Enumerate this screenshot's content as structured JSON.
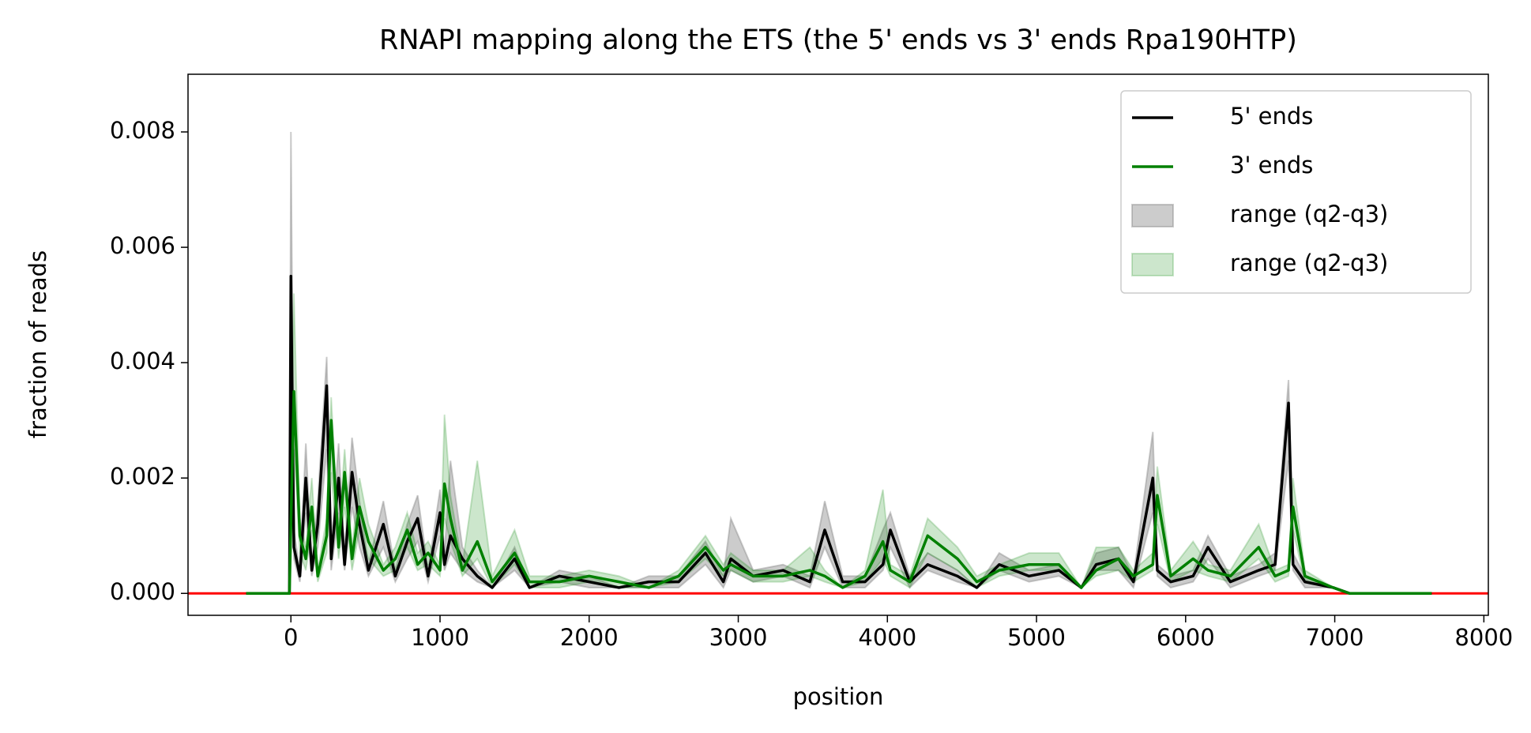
{
  "chart_data": {
    "type": "line",
    "title": "RNAPI mapping along the ETS (the 5' ends vs 3' ends Rpa190HTP)",
    "x_label": "position",
    "y_label": "fraction of reads",
    "x": [
      -300,
      -10,
      0,
      20,
      60,
      100,
      140,
      180,
      240,
      270,
      320,
      360,
      410,
      460,
      520,
      620,
      700,
      780,
      850,
      920,
      1000,
      1030,
      1070,
      1150,
      1250,
      1350,
      1500,
      1600,
      1800,
      2000,
      2200,
      2400,
      2600,
      2780,
      2900,
      2950,
      3100,
      3300,
      3480,
      3580,
      3700,
      3850,
      3970,
      4020,
      4150,
      4270,
      4470,
      4600,
      4750,
      4950,
      5150,
      5300,
      5400,
      5550,
      5650,
      5780,
      5810,
      5900,
      6050,
      6150,
      6300,
      6490,
      6600,
      6690,
      6720,
      6800,
      6990,
      7100,
      7650
    ],
    "series": [
      {
        "name": "5' ends",
        "color": "#000000",
        "values": [
          0,
          0,
          0.0055,
          0.0008,
          0.0003,
          0.002,
          0.0004,
          0.0012,
          0.0036,
          0.0006,
          0.002,
          0.0005,
          0.0021,
          0.0012,
          0.0004,
          0.0012,
          0.0003,
          0.0009,
          0.0013,
          0.0003,
          0.0014,
          0.0005,
          0.001,
          0.0006,
          0.0003,
          0.0001,
          0.0006,
          0.0001,
          0.0003,
          0.0002,
          0.0001,
          0.0002,
          0.0002,
          0.0007,
          0.0002,
          0.0006,
          0.0003,
          0.0004,
          0.0002,
          0.0011,
          0.0002,
          0.0002,
          0.0005,
          0.0011,
          0.0002,
          0.0005,
          0.0003,
          0.0001,
          0.0005,
          0.0003,
          0.0004,
          0.0001,
          0.0005,
          0.0006,
          0.0002,
          0.002,
          0.0004,
          0.0002,
          0.0003,
          0.0008,
          0.0002,
          0.0004,
          0.0005,
          0.0033,
          0.0005,
          0.0002,
          0.0001,
          0,
          0
        ]
      },
      {
        "name": "3' ends",
        "color": "#008000",
        "values": [
          0,
          0,
          0.0012,
          0.0035,
          0.001,
          0.0006,
          0.0015,
          0.0003,
          0.001,
          0.003,
          0.0008,
          0.0021,
          0.0006,
          0.0015,
          0.0009,
          0.0004,
          0.0006,
          0.0011,
          0.0005,
          0.0007,
          0.0004,
          0.0019,
          0.0013,
          0.0004,
          0.0009,
          0.0002,
          0.0007,
          0.0002,
          0.0002,
          0.0003,
          0.0002,
          0.0001,
          0.0003,
          0.0008,
          0.0004,
          0.0005,
          0.0003,
          0.0003,
          0.0004,
          0.0003,
          0.0001,
          0.0003,
          0.0009,
          0.0004,
          0.0002,
          0.001,
          0.0006,
          0.0002,
          0.0004,
          0.0005,
          0.0005,
          0.0001,
          0.0004,
          0.0006,
          0.0003,
          0.0005,
          0.0017,
          0.0003,
          0.0006,
          0.0004,
          0.0003,
          0.0008,
          0.0003,
          0.0004,
          0.0015,
          0.0003,
          0.0001,
          0,
          0
        ]
      }
    ],
    "bands": [
      {
        "name": "range (q2-q3)",
        "color": "#808080",
        "lower": [
          0,
          0,
          0.0038,
          0.0006,
          0.0002,
          0.0014,
          0.0003,
          0.0008,
          0.0025,
          0.0004,
          0.0014,
          0.0004,
          0.0015,
          0.0008,
          0.0003,
          0.0008,
          0.0002,
          0.0006,
          0.0009,
          0.0002,
          0.001,
          0.0004,
          0.0007,
          0.0004,
          0.0002,
          0.0001,
          0.0004,
          0.0001,
          0.0002,
          0.0001,
          0.0001,
          0.0001,
          0.0001,
          0.0005,
          0.0001,
          0.0004,
          0.0002,
          0.0003,
          0.0001,
          0.0008,
          0.0001,
          0.0001,
          0.0004,
          0.0008,
          0.0001,
          0.0004,
          0.0002,
          0.0001,
          0.0004,
          0.0002,
          0.0003,
          0.0001,
          0.0004,
          0.0004,
          0.0001,
          0.0014,
          0.0003,
          0.0001,
          0.0002,
          0.0006,
          0.0001,
          0.0003,
          0.0004,
          0.0023,
          0.0004,
          0.0001,
          0.0001,
          0,
          0
        ],
        "upper": [
          0,
          0,
          0.008,
          0.0011,
          0.0004,
          0.0026,
          0.0005,
          0.0016,
          0.0041,
          0.0008,
          0.0026,
          0.0007,
          0.0027,
          0.0016,
          0.0005,
          0.0016,
          0.0004,
          0.0012,
          0.0017,
          0.0004,
          0.0018,
          0.0007,
          0.0023,
          0.0008,
          0.0004,
          0.0001,
          0.0008,
          0.0001,
          0.0004,
          0.0003,
          0.0001,
          0.0003,
          0.0003,
          0.0009,
          0.0003,
          0.0013,
          0.0004,
          0.0005,
          0.0003,
          0.0016,
          0.0003,
          0.0003,
          0.0011,
          0.0014,
          0.0003,
          0.0007,
          0.0004,
          0.0001,
          0.0007,
          0.0004,
          0.0005,
          0.0001,
          0.0007,
          0.0008,
          0.0003,
          0.0028,
          0.0005,
          0.0003,
          0.0004,
          0.001,
          0.0003,
          0.0005,
          0.0007,
          0.0037,
          0.0007,
          0.0003,
          0.0001,
          0,
          0
        ]
      },
      {
        "name": "range (q2-q3)",
        "color": "#008000",
        "lower": [
          0,
          0,
          0.0008,
          0.0025,
          0.0007,
          0.0004,
          0.0011,
          0.0002,
          0.0007,
          0.0021,
          0.0006,
          0.0015,
          0.0004,
          0.0011,
          0.0006,
          0.0003,
          0.0004,
          0.0008,
          0.0004,
          0.0005,
          0.0003,
          0.0013,
          0.0009,
          0.0003,
          0.0006,
          0.0001,
          0.0005,
          0.0001,
          0.0001,
          0.0002,
          0.0001,
          0.0001,
          0.0002,
          0.0006,
          0.0003,
          0.0004,
          0.0002,
          0.0002,
          0.0003,
          0.0002,
          0.0001,
          0.0002,
          0.0006,
          0.0003,
          0.0001,
          0.0007,
          0.0004,
          0.0001,
          0.0003,
          0.0004,
          0.0004,
          0.0001,
          0.0003,
          0.0004,
          0.0002,
          0.0004,
          0.0012,
          0.0002,
          0.0004,
          0.0003,
          0.0002,
          0.0006,
          0.0002,
          0.0003,
          0.0011,
          0.0002,
          0.0001,
          0,
          0
        ],
        "upper": [
          0,
          0,
          0.0016,
          0.0052,
          0.0013,
          0.0008,
          0.002,
          0.0004,
          0.0013,
          0.0034,
          0.001,
          0.0025,
          0.0008,
          0.002,
          0.0012,
          0.0005,
          0.0008,
          0.0014,
          0.0007,
          0.0009,
          0.0005,
          0.0031,
          0.0017,
          0.0005,
          0.0023,
          0.0003,
          0.0011,
          0.0003,
          0.0003,
          0.0004,
          0.0003,
          0.0001,
          0.0004,
          0.001,
          0.0005,
          0.0007,
          0.0004,
          0.0004,
          0.0008,
          0.0004,
          0.0001,
          0.0004,
          0.0018,
          0.0005,
          0.0003,
          0.0013,
          0.0008,
          0.0003,
          0.0005,
          0.0007,
          0.0007,
          0.0001,
          0.0008,
          0.0008,
          0.0004,
          0.0007,
          0.0022,
          0.0004,
          0.0009,
          0.0005,
          0.0004,
          0.0012,
          0.0004,
          0.0005,
          0.002,
          0.0004,
          0.0001,
          0,
          0
        ]
      }
    ],
    "hline": {
      "value": 0,
      "color": "#ff0000"
    },
    "xlim": [
      -690,
      8030
    ],
    "xticks": [
      0,
      1000,
      2000,
      3000,
      4000,
      5000,
      6000,
      7000,
      8000
    ],
    "ylim": [
      -0.00038,
      0.009
    ],
    "yticks": [
      {
        "value": 0,
        "label": "0.000"
      },
      {
        "value": 0.002,
        "label": "0.002"
      },
      {
        "value": 0.004,
        "label": "0.004"
      },
      {
        "value": 0.006,
        "label": "0.006"
      },
      {
        "value": 0.008,
        "label": "0.008"
      }
    ],
    "legend": "upper right"
  }
}
